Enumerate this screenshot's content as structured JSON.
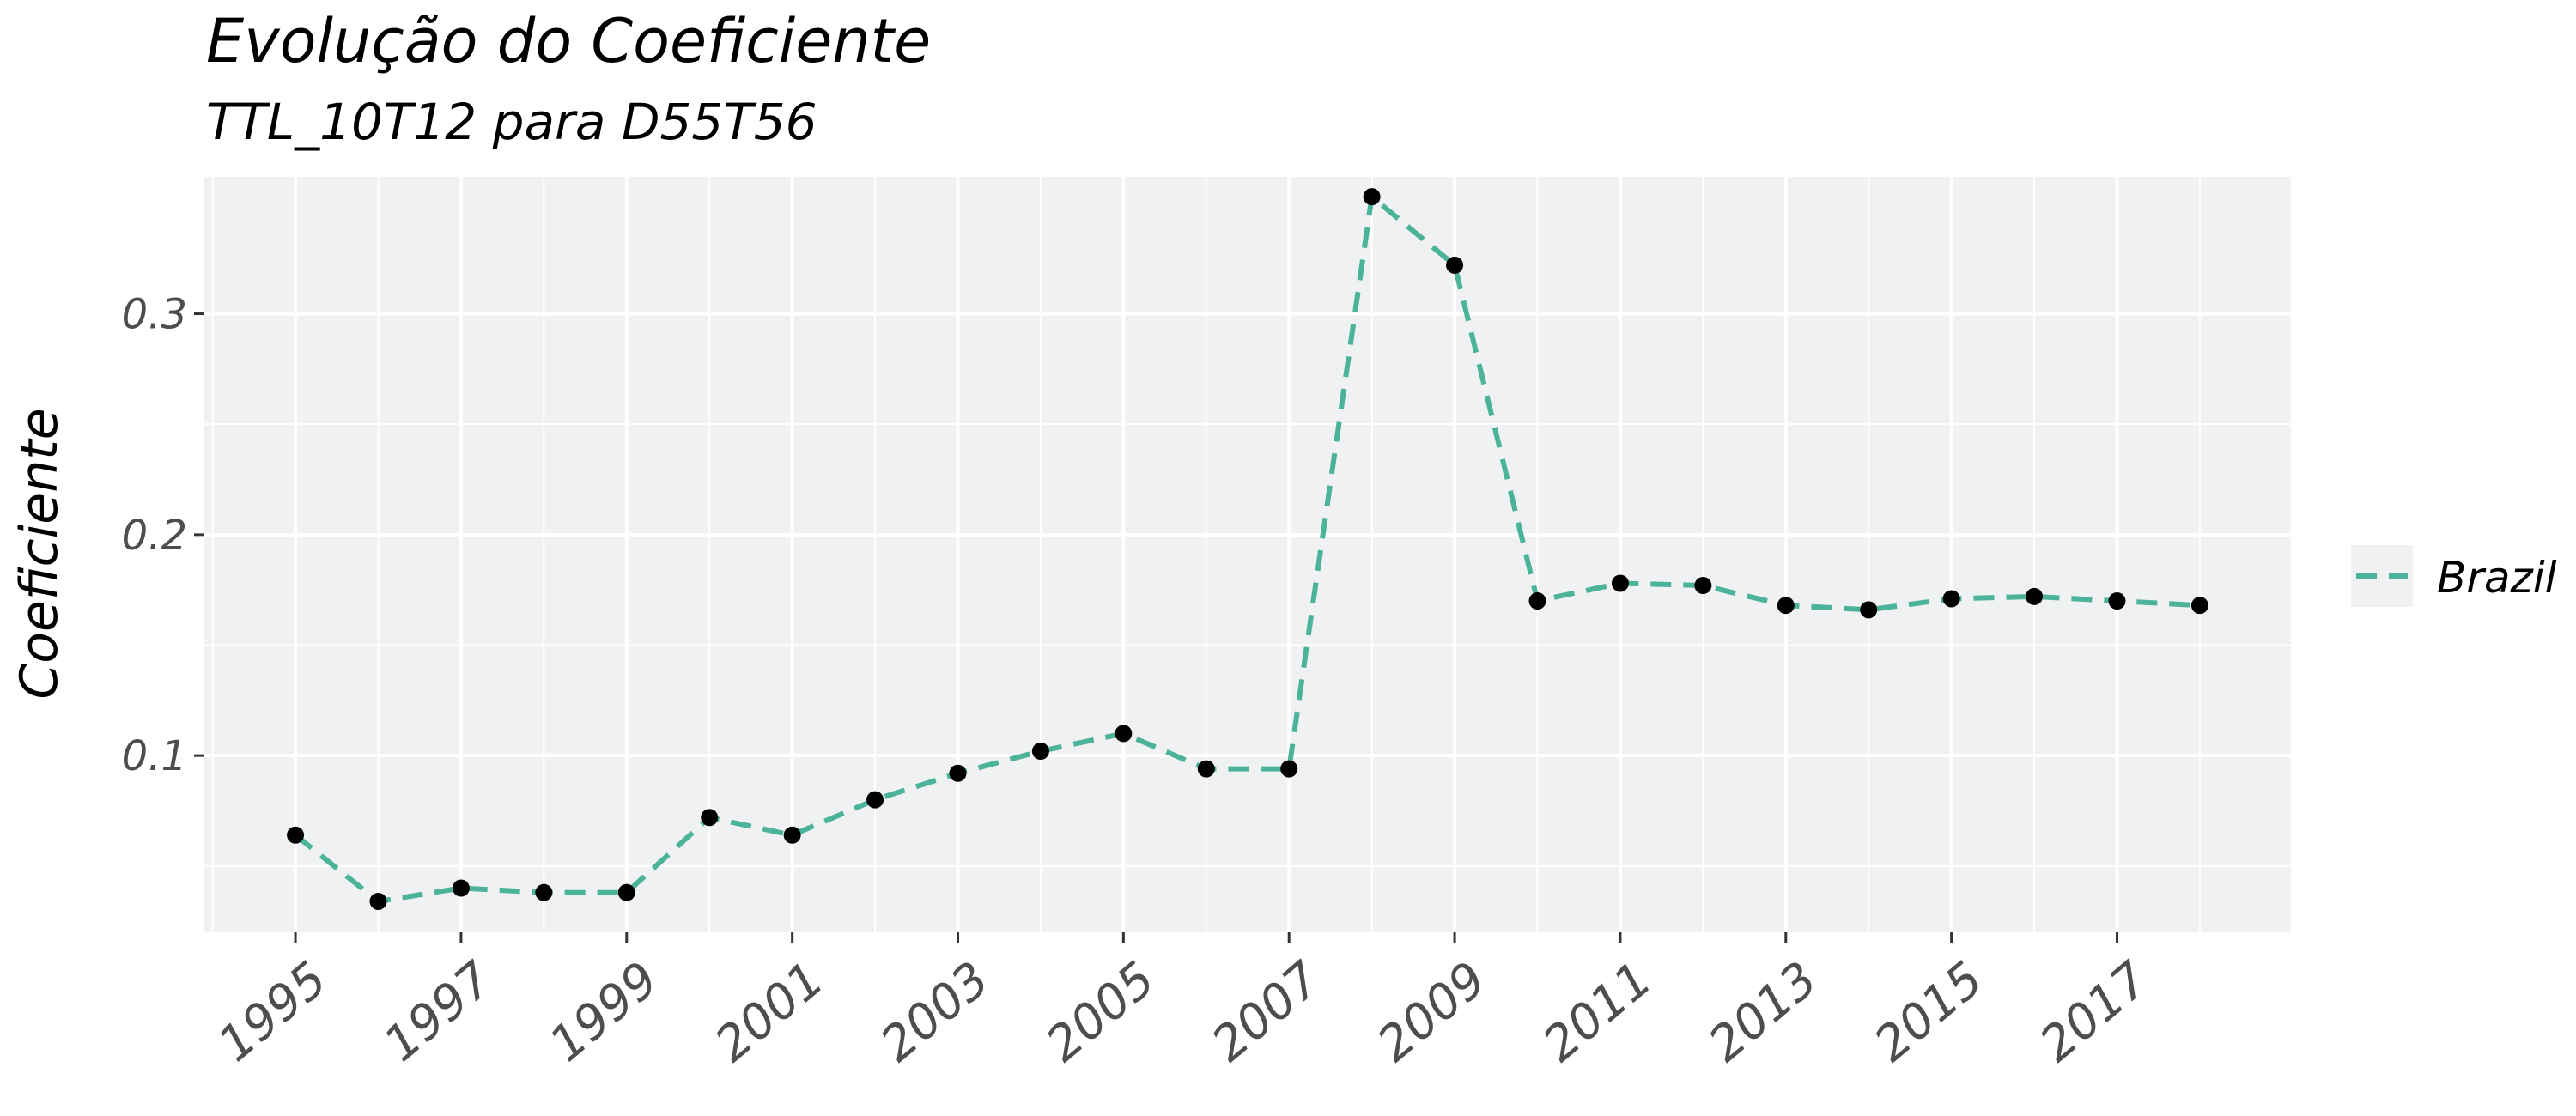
{
  "chart_data": {
    "type": "line",
    "title": "Evolução do Coeficiente",
    "subtitle": "TTL_10T12 para D55T56",
    "xlabel": "",
    "ylabel": "Coeficiente",
    "x": [
      1995,
      1996,
      1997,
      1998,
      1999,
      2000,
      2001,
      2002,
      2003,
      2004,
      2005,
      2006,
      2007,
      2008,
      2009,
      2010,
      2011,
      2012,
      2013,
      2014,
      2015,
      2016,
      2017,
      2018
    ],
    "x_ticks": [
      1995,
      1997,
      1999,
      2001,
      2003,
      2005,
      2007,
      2009,
      2011,
      2013,
      2015,
      2017
    ],
    "x_tick_labels": [
      "1995",
      "1997",
      "1999",
      "2001",
      "2003",
      "2005",
      "2007",
      "2009",
      "2011",
      "2013",
      "2015",
      "2017"
    ],
    "y_ticks": [
      0.1,
      0.2,
      0.3
    ],
    "y_tick_labels": [
      "0.1",
      "0.2",
      "0.3"
    ],
    "xlim": [
      1993.9,
      2019.1
    ],
    "ylim": [
      0.02,
      0.362
    ],
    "grid": true,
    "legend_position": "right",
    "series": [
      {
        "name": "Brazil",
        "color": "#4cb39b",
        "line_style": "dashed",
        "values": [
          0.064,
          0.034,
          0.04,
          0.038,
          0.038,
          0.072,
          0.064,
          0.08,
          0.092,
          0.102,
          0.11,
          0.094,
          0.094,
          0.353,
          0.322,
          0.17,
          0.178,
          0.177,
          0.168,
          0.166,
          0.171,
          0.172,
          0.17,
          0.168
        ]
      }
    ]
  }
}
